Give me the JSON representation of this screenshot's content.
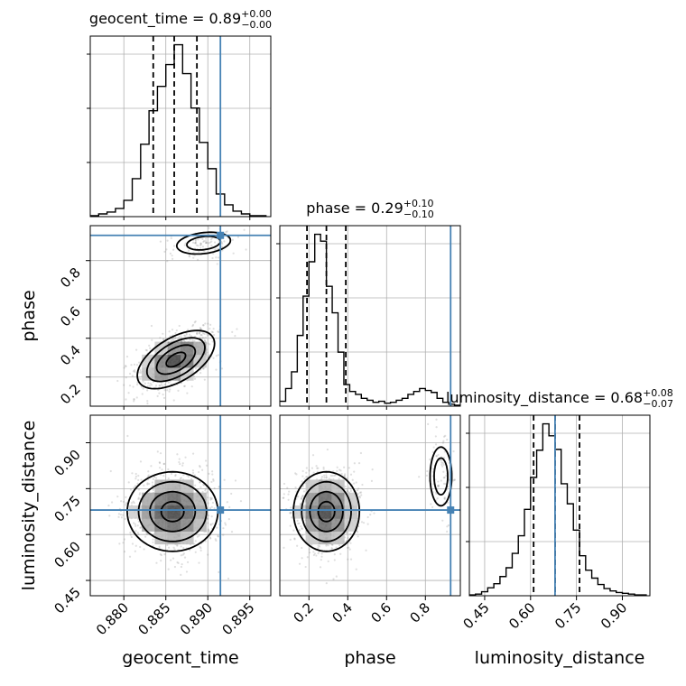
{
  "chart_data": {
    "type": "corner",
    "parameters": [
      "geocent_time",
      "phase",
      "luminosity_distance"
    ],
    "truth": {
      "geocent_time": 0.8915,
      "phase": 0.93,
      "luminosity_distance": 0.68
    },
    "titles": [
      {
        "param": "geocent_time",
        "prefix": "geocent_time = 0.89",
        "plus": "+0.00",
        "minus": "−0.00"
      },
      {
        "param": "phase",
        "prefix": "phase = 0.29",
        "plus": "+0.10",
        "minus": "−0.10"
      },
      {
        "param": "luminosity_distance",
        "prefix": "luminosity_distance = 0.68",
        "plus": "+0.08",
        "minus": "−0.07"
      }
    ],
    "axes": {
      "geocent_time": {
        "range": [
          0.876,
          0.8975
        ],
        "ticks": [
          "0.880",
          "0.885",
          "0.890",
          "0.895"
        ],
        "tick_values": [
          0.88,
          0.885,
          0.89,
          0.895
        ]
      },
      "phase": {
        "range": [
          0.05,
          0.98
        ],
        "ticks": [
          "0.2",
          "0.4",
          "0.6",
          "0.8"
        ],
        "tick_values": [
          0.2,
          0.4,
          0.6,
          0.8
        ]
      },
      "luminosity_distance": {
        "range": [
          0.4,
          0.99
        ],
        "ticks": [
          "0.45",
          "0.60",
          "0.75",
          "0.90"
        ],
        "tick_values": [
          0.45,
          0.6,
          0.75,
          0.9
        ]
      }
    },
    "marginals": {
      "geocent_time": {
        "edges": [
          0.876,
          0.877,
          0.878,
          0.879,
          0.88,
          0.881,
          0.882,
          0.883,
          0.884,
          0.885,
          0.886,
          0.887,
          0.888,
          0.889,
          0.89,
          0.891,
          0.892,
          0.893,
          0.894,
          0.895,
          0.896,
          0.897
        ],
        "counts": [
          1,
          3,
          5,
          9,
          18,
          42,
          80,
          117,
          144,
          168,
          190,
          158,
          120,
          82,
          53,
          25,
          13,
          6,
          3,
          1,
          1
        ],
        "quantiles": [
          0.8835,
          0.886,
          0.8887
        ]
      },
      "phase": {
        "edges": [
          0.05,
          0.08,
          0.11,
          0.14,
          0.17,
          0.2,
          0.23,
          0.26,
          0.29,
          0.32,
          0.35,
          0.38,
          0.41,
          0.44,
          0.47,
          0.5,
          0.53,
          0.56,
          0.59,
          0.62,
          0.65,
          0.68,
          0.71,
          0.74,
          0.77,
          0.8,
          0.83,
          0.86,
          0.89,
          0.92,
          0.95,
          0.98
        ],
        "counts": [
          5,
          18,
          35,
          72,
          112,
          147,
          175,
          168,
          122,
          95,
          55,
          22,
          15,
          12,
          8,
          6,
          4,
          5,
          3,
          4,
          6,
          8,
          12,
          15,
          18,
          16,
          14,
          8,
          4,
          2,
          1
        ],
        "quantiles": [
          0.19,
          0.29,
          0.39
        ]
      },
      "luminosity_distance": {
        "edges": [
          0.4,
          0.42,
          0.44,
          0.46,
          0.48,
          0.5,
          0.52,
          0.54,
          0.56,
          0.58,
          0.6,
          0.62,
          0.64,
          0.66,
          0.68,
          0.7,
          0.72,
          0.74,
          0.76,
          0.78,
          0.8,
          0.82,
          0.84,
          0.86,
          0.88,
          0.9,
          0.92,
          0.94,
          0.96,
          0.98
        ],
        "counts": [
          1,
          2,
          5,
          10,
          15,
          24,
          35,
          53,
          75,
          108,
          148,
          182,
          215,
          200,
          183,
          140,
          115,
          82,
          50,
          32,
          22,
          14,
          9,
          6,
          4,
          3,
          2,
          1,
          1
        ],
        "quantiles": [
          0.61,
          0.68,
          0.76
        ]
      }
    },
    "joints": [
      {
        "x": "geocent_time",
        "y": "phase",
        "modes": [
          {
            "cx": 0.8862,
            "cy": 0.29,
            "sx": 0.0023,
            "sy": 0.075,
            "rho": 0.55,
            "weight": 0.88
          },
          {
            "cx": 0.8895,
            "cy": 0.89,
            "sx": 0.002,
            "sy": 0.035,
            "rho": 0.25,
            "weight": 0.12
          }
        ]
      },
      {
        "x": "geocent_time",
        "y": "luminosity_distance",
        "modes": [
          {
            "cx": 0.8858,
            "cy": 0.675,
            "sx": 0.0027,
            "sy": 0.065,
            "rho": 0.0,
            "weight": 1.0
          }
        ]
      },
      {
        "x": "phase",
        "y": "luminosity_distance",
        "modes": [
          {
            "cx": 0.29,
            "cy": 0.675,
            "sx": 0.085,
            "sy": 0.065,
            "rho": 0.0,
            "weight": 0.9
          },
          {
            "cx": 0.88,
            "cy": 0.79,
            "sx": 0.035,
            "sy": 0.06,
            "rho": 0.0,
            "weight": 0.1
          }
        ]
      }
    ],
    "contour_levels": [
      "1-sigma",
      "2-sigma",
      "3-sigma"
    ],
    "colors": {
      "truth": "#4682b4",
      "contour": "#000000",
      "samples": "#808080",
      "grid": "#b0b0b0"
    },
    "grid": true
  }
}
